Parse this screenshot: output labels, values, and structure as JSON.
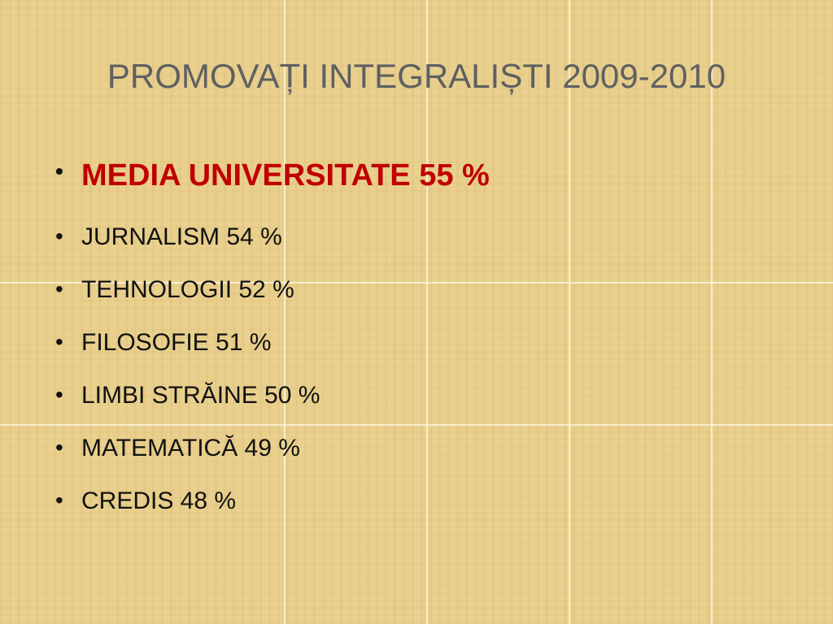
{
  "slide": {
    "title": "PROMOVAȚI INTEGRALIȘTI 2009-2010",
    "bullets": [
      "MEDIA UNIVERSITATE 55 %",
      "JURNALISM 54 %",
      "TEHNOLOGII 52 %",
      "FILOSOFIE 51 %",
      "LIMBI STRĂINE 50 %",
      "MATEMATICĂ 49 %",
      "CREDIS 48 %"
    ]
  }
}
